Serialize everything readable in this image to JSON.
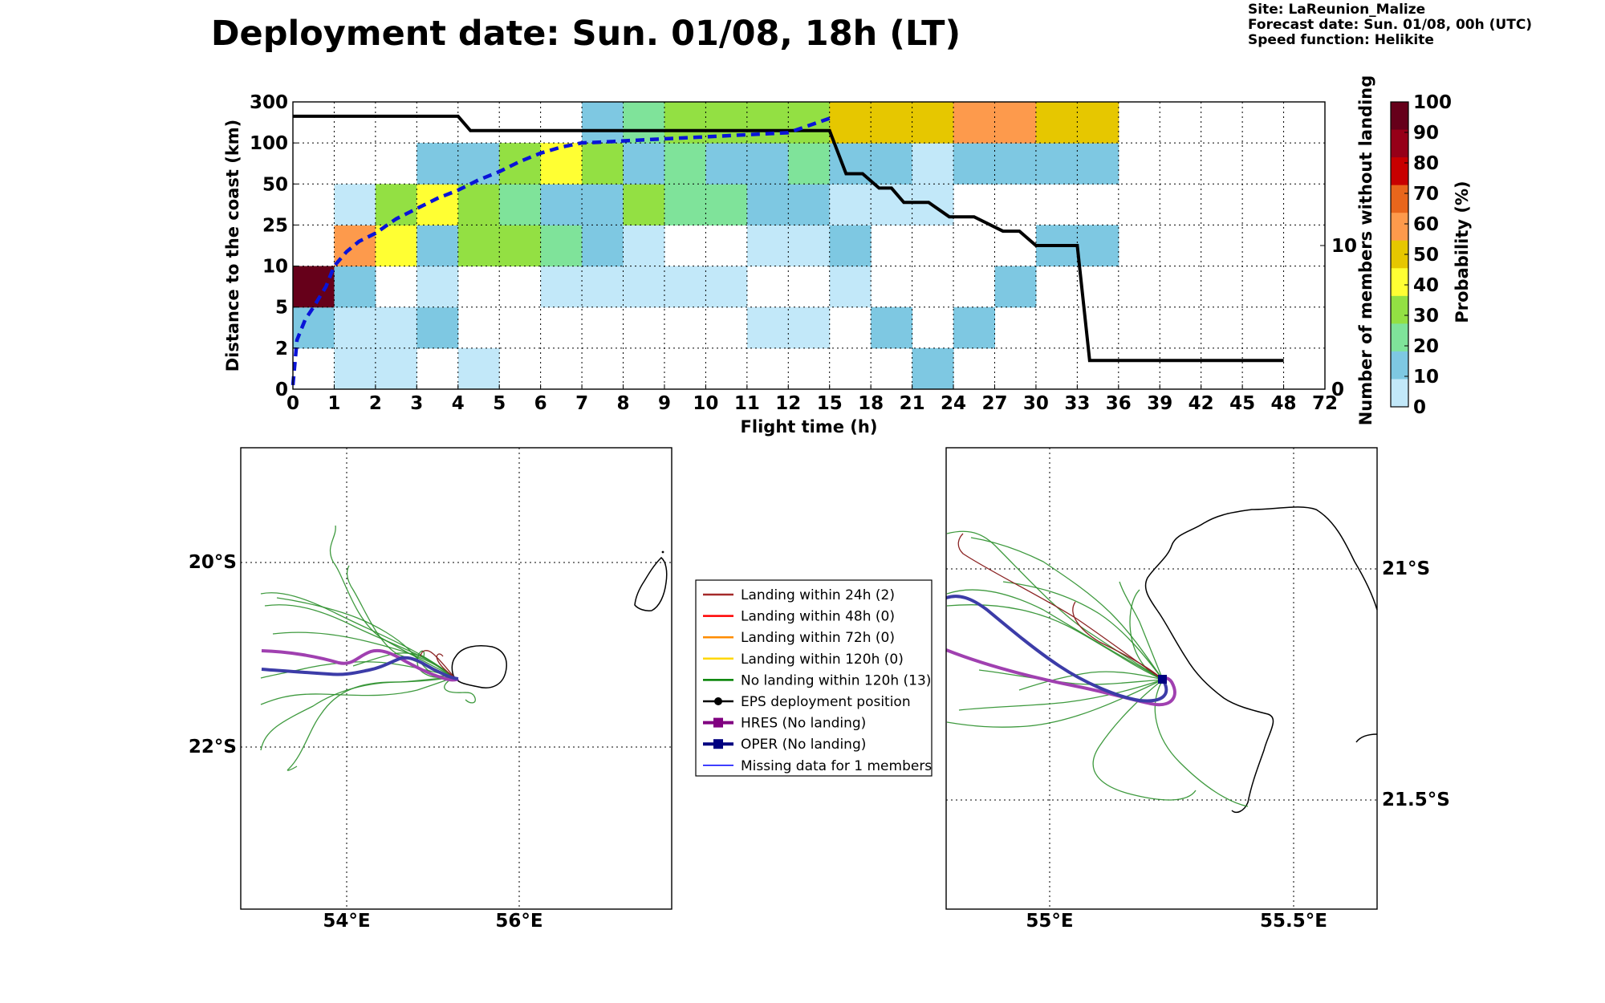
{
  "header": {
    "title": "Deployment date: Sun. 01/08, 18h (LT)",
    "info": [
      "Site: LaReunion_Malize",
      "Forecast date: Sun. 01/08, 00h (UTC)",
      "Speed function: Helikite"
    ]
  },
  "chart_data": [
    {
      "type": "heatmap",
      "xlabel": "Flight time (h)",
      "ylabel": "Distance to the coast (km)",
      "y2label": "Number of members without landing",
      "x_ticks": [
        "0",
        "1",
        "2",
        "3",
        "4",
        "5",
        "6",
        "7",
        "8",
        "9",
        "10",
        "11",
        "12",
        "15",
        "18",
        "21",
        "24",
        "27",
        "30",
        "33",
        "36",
        "39",
        "42",
        "45",
        "48",
        "72"
      ],
      "y_ticks": [
        "0",
        "2",
        "5",
        "10",
        "25",
        "50",
        "100",
        "300"
      ],
      "y2_ticks": [
        {
          "label": "10",
          "value": 10
        },
        {
          "label": "0",
          "value": 0
        }
      ],
      "y2_range": [
        0,
        20
      ],
      "colorbar": {
        "label": "Probability (%)",
        "ticks": [
          "0",
          "10",
          "20",
          "30",
          "40",
          "50",
          "60",
          "70",
          "80",
          "90",
          "100"
        ],
        "colors": [
          "#c2e8f9",
          "#7ec8e2",
          "#7fe39a",
          "#93e043",
          "#ffff33",
          "#e6c700",
          "#fd9a4c",
          "#e8661c",
          "#c80000",
          "#960018",
          "#66001a"
        ]
      },
      "cells": [
        [
          0,
          1,
          10
        ],
        [
          0,
          2,
          100
        ],
        [
          1,
          0,
          0
        ],
        [
          1,
          1,
          0
        ],
        [
          1,
          2,
          10
        ],
        [
          1,
          3,
          60
        ],
        [
          1,
          4,
          0
        ],
        [
          2,
          0,
          0
        ],
        [
          2,
          1,
          0
        ],
        [
          2,
          3,
          40
        ],
        [
          2,
          4,
          30
        ],
        [
          3,
          1,
          10
        ],
        [
          3,
          2,
          0
        ],
        [
          3,
          3,
          10
        ],
        [
          3,
          4,
          40
        ],
        [
          3,
          5,
          10
        ],
        [
          4,
          0,
          0
        ],
        [
          4,
          3,
          30
        ],
        [
          4,
          4,
          30
        ],
        [
          4,
          5,
          10
        ],
        [
          5,
          3,
          30
        ],
        [
          5,
          4,
          20
        ],
        [
          5,
          5,
          30
        ],
        [
          6,
          2,
          0
        ],
        [
          6,
          3,
          20
        ],
        [
          6,
          4,
          10
        ],
        [
          6,
          5,
          40
        ],
        [
          7,
          2,
          0
        ],
        [
          7,
          3,
          10
        ],
        [
          7,
          4,
          10
        ],
        [
          7,
          5,
          30
        ],
        [
          7,
          6,
          10
        ],
        [
          8,
          2,
          0
        ],
        [
          8,
          3,
          0
        ],
        [
          8,
          4,
          30
        ],
        [
          8,
          5,
          10
        ],
        [
          8,
          6,
          20
        ],
        [
          9,
          2,
          0
        ],
        [
          9,
          4,
          20
        ],
        [
          9,
          5,
          20
        ],
        [
          9,
          6,
          30
        ],
        [
          10,
          2,
          0
        ],
        [
          10,
          4,
          20
        ],
        [
          10,
          5,
          10
        ],
        [
          10,
          6,
          30
        ],
        [
          11,
          1,
          0
        ],
        [
          11,
          3,
          0
        ],
        [
          11,
          4,
          10
        ],
        [
          11,
          5,
          10
        ],
        [
          11,
          6,
          30
        ],
        [
          12,
          1,
          0
        ],
        [
          12,
          3,
          0
        ],
        [
          12,
          4,
          10
        ],
        [
          12,
          5,
          20
        ],
        [
          12,
          6,
          30
        ],
        [
          13,
          2,
          0
        ],
        [
          13,
          3,
          10
        ],
        [
          13,
          4,
          0
        ],
        [
          13,
          5,
          10
        ],
        [
          13,
          6,
          50
        ],
        [
          14,
          1,
          10
        ],
        [
          14,
          4,
          0
        ],
        [
          14,
          5,
          10
        ],
        [
          14,
          6,
          50
        ],
        [
          15,
          0,
          10
        ],
        [
          15,
          4,
          0
        ],
        [
          15,
          5,
          0
        ],
        [
          15,
          6,
          50
        ],
        [
          16,
          1,
          10
        ],
        [
          16,
          5,
          10
        ],
        [
          16,
          6,
          60
        ],
        [
          17,
          2,
          10
        ],
        [
          17,
          5,
          10
        ],
        [
          17,
          6,
          60
        ],
        [
          18,
          3,
          10
        ],
        [
          18,
          5,
          10
        ],
        [
          18,
          6,
          50
        ],
        [
          19,
          3,
          10
        ],
        [
          19,
          5,
          10
        ],
        [
          19,
          6,
          50
        ]
      ],
      "eps_line": {
        "x": [
          0,
          1,
          2,
          3,
          4,
          4.3,
          5,
          6,
          7,
          8,
          9,
          10,
          11,
          12,
          13,
          13.4,
          13.8,
          14.2,
          14.5,
          14.8,
          15.4,
          15.9,
          16.5,
          17.2,
          17.6,
          18,
          19,
          19.3,
          20,
          21,
          22,
          23,
          24
        ],
        "y": [
          19,
          19,
          19,
          19,
          19,
          18,
          18,
          18,
          18,
          18,
          18,
          18,
          18,
          18,
          18,
          15,
          15,
          14,
          14,
          13,
          13,
          12,
          12,
          11,
          11,
          10,
          10,
          2,
          2,
          2,
          2,
          2,
          2
        ]
      },
      "hres_line": {
        "x": [
          0,
          0.1,
          0.3,
          0.5,
          0.8,
          1,
          1.3,
          1.6,
          2,
          2.5,
          3,
          3.5,
          4,
          4.5,
          5,
          5.5,
          6,
          6.5,
          7,
          7.5,
          8,
          9,
          10,
          11,
          12,
          13
        ],
        "y": [
          0.1,
          1.2,
          1.7,
          2,
          2.5,
          3,
          3.35,
          3.6,
          3.8,
          4.15,
          4.4,
          4.65,
          4.85,
          5.1,
          5.3,
          5.55,
          5.75,
          5.9,
          6,
          6.02,
          6.05,
          6.1,
          6.15,
          6.2,
          6.25,
          6.6
        ]
      }
    },
    {
      "type": "map",
      "x_ticks": [
        "54°E",
        "56°E"
      ],
      "y_ticks": [
        "20°S",
        "22°S"
      ]
    },
    {
      "type": "map",
      "x_ticks": [
        "55°E",
        "55.5°E"
      ],
      "y_ticks": [
        "21°S",
        "21.5°S"
      ]
    }
  ],
  "legend": [
    {
      "label": "Landing within 24h (2)",
      "color": "#a52a2a",
      "marker": "line"
    },
    {
      "label": "Landing within 48h (0)",
      "color": "#ff0000",
      "marker": "line"
    },
    {
      "label": "Landing within 72h (0)",
      "color": "#ff8c00",
      "marker": "line"
    },
    {
      "label": "Landing within 120h (0)",
      "color": "#ffd700",
      "marker": "line"
    },
    {
      "label": "No landing within 120h (13)",
      "color": "#008000",
      "marker": "line"
    },
    {
      "label": "EPS deployment position",
      "color": "#000000",
      "marker": "circle"
    },
    {
      "label": "HRES (No landing)",
      "color": "#800080",
      "marker": "square"
    },
    {
      "label": "OPER (No landing)",
      "color": "#000080",
      "marker": "square"
    },
    {
      "label": "Missing data for 1 members",
      "color": "#0000ff",
      "marker": "thin"
    }
  ]
}
